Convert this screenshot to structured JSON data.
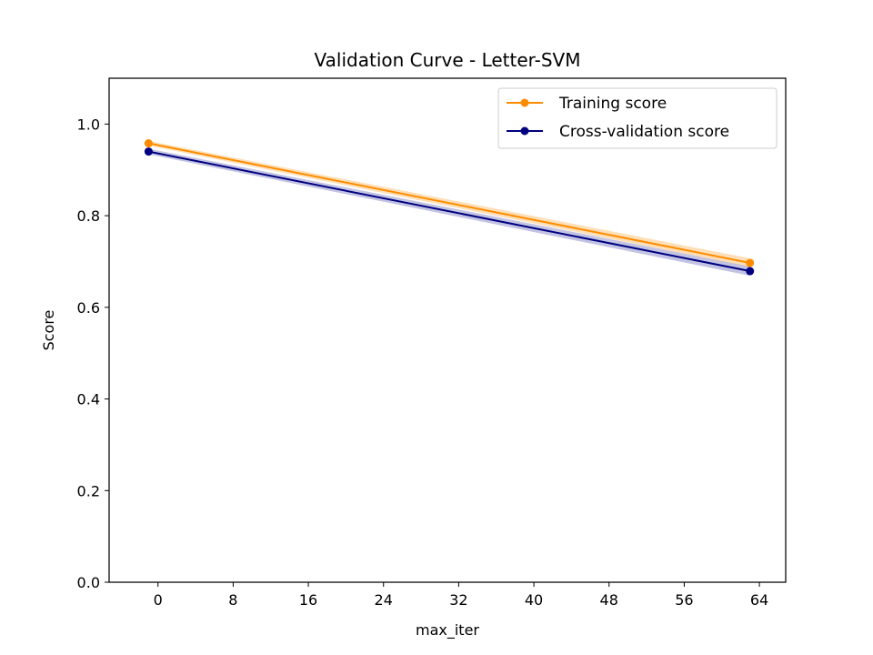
{
  "chart_data": {
    "type": "line",
    "title": "Validation Curve - Letter-SVM",
    "xlabel": "max_iter",
    "ylabel": "Score",
    "xlim": [
      -5.2,
      66.8
    ],
    "ylim": [
      0.0,
      1.1
    ],
    "xticks": [
      0,
      8,
      16,
      24,
      32,
      40,
      48,
      56,
      64
    ],
    "yticks": [
      0.0,
      0.2,
      0.4,
      0.6,
      0.8,
      1.0
    ],
    "ytick_labels": [
      "0.0",
      "0.2",
      "0.4",
      "0.6",
      "0.8",
      "1.0"
    ],
    "grid": false,
    "legend_position": "top-right",
    "series": [
      {
        "name": "Training score",
        "color": "#ff8c00",
        "x": [
          -1,
          63
        ],
        "y": [
          0.958,
          0.697
        ],
        "band_lower": [
          0.953,
          0.688
        ],
        "band_upper": [
          0.963,
          0.707
        ],
        "band_color": "#ffbf70"
      },
      {
        "name": "Cross-validation score",
        "color": "#000080",
        "x": [
          -1,
          63
        ],
        "y": [
          0.94,
          0.679
        ],
        "band_lower": [
          0.934,
          0.669
        ],
        "band_upper": [
          0.946,
          0.689
        ],
        "band_color": "#8888c8"
      }
    ]
  }
}
